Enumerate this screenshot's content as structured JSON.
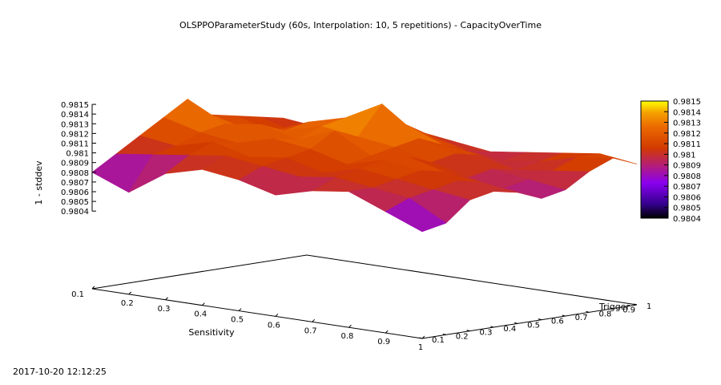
{
  "chart_data": {
    "type": "surface3d",
    "title": "OLSPPOParameterStudy (60s, Interpolation: 10, 5 repetitions) - CapacityOverTime",
    "xlabel": "Sensitivity",
    "ylabel": "Trigger",
    "zlabel": "1 - stddev",
    "xlim": [
      0.1,
      1
    ],
    "ylim": [
      0.1,
      1
    ],
    "zlim": [
      0.9804,
      0.9815
    ],
    "x_ticks": [
      "0.1",
      "0.2",
      "0.3",
      "0.4",
      "0.5",
      "0.6",
      "0.7",
      "0.8",
      "0.9",
      "1"
    ],
    "y_ticks": [
      "0.1",
      "0.2",
      "0.3",
      "0.4",
      "0.5",
      "0.6",
      "0.7",
      "0.8",
      "0.9",
      "1"
    ],
    "z_ticks": [
      "0.9815",
      "0.9814",
      "0.9813",
      "0.9812",
      "0.9811",
      "0.981",
      "0.9809",
      "0.9808",
      "0.9807",
      "0.9806",
      "0.9805",
      "0.9804"
    ],
    "colorbar_ticks": [
      "0.9815",
      "0.9814",
      "0.9813",
      "0.9812",
      "0.9811",
      "0.981",
      "0.9809",
      "0.9808",
      "0.9807",
      "0.9806",
      "0.9805",
      "0.9804"
    ],
    "colormap": "gnuplot (black-purple-red-orange-yellow)",
    "x": [
      0.1,
      0.2,
      0.3,
      0.4,
      0.5,
      0.6,
      0.7,
      0.8,
      0.9,
      1.0
    ],
    "y": [
      0.1,
      0.2,
      0.3,
      0.4,
      0.5,
      0.6,
      0.7,
      0.8,
      0.9,
      1.0
    ],
    "z": [
      [
        0.9808,
        0.98065,
        0.9809,
        0.981,
        0.98095,
        0.98085,
        0.98095,
        0.981,
        0.98085,
        0.9807
      ],
      [
        0.98095,
        0.981,
        0.98105,
        0.9811,
        0.98105,
        0.981,
        0.98105,
        0.981,
        0.98095,
        0.98075
      ],
      [
        0.9811,
        0.98105,
        0.98115,
        0.98105,
        0.9811,
        0.981,
        0.9811,
        0.98105,
        0.981,
        0.98095
      ],
      [
        0.98125,
        0.98115,
        0.9811,
        0.9812,
        0.98115,
        0.98105,
        0.98115,
        0.9811,
        0.98105,
        0.981
      ],
      [
        0.9814,
        0.9812,
        0.98125,
        0.98115,
        0.9813,
        0.9811,
        0.98115,
        0.98105,
        0.981,
        0.98095
      ],
      [
        0.9812,
        0.9811,
        0.98115,
        0.98125,
        0.9812,
        0.98115,
        0.98105,
        0.98095,
        0.9809,
        0.98085
      ],
      [
        0.98115,
        0.98105,
        0.9812,
        0.9813,
        0.9815,
        0.9812,
        0.9811,
        0.981,
        0.98095,
        0.9809
      ],
      [
        0.9811,
        0.981,
        0.9811,
        0.9812,
        0.98125,
        0.9811,
        0.98105,
        0.98095,
        0.981,
        0.98105
      ],
      [
        0.98105,
        0.981,
        0.98105,
        0.9811,
        0.9811,
        0.981,
        0.98095,
        0.981,
        0.9811,
        0.98115
      ],
      [
        0.98095,
        0.981,
        0.981,
        0.98105,
        0.981,
        0.98095,
        0.981,
        0.98105,
        0.9811,
        0.98105
      ]
    ]
  },
  "footer": {
    "timestamp": "2017-10-20 12:12:25"
  }
}
